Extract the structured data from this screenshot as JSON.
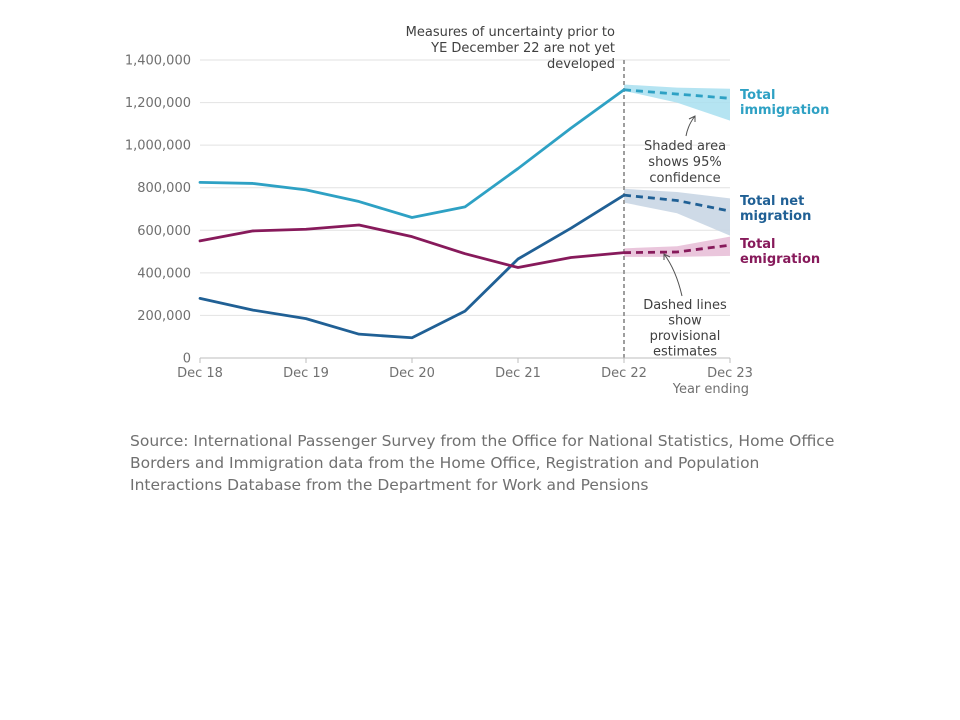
{
  "chart_data": {
    "type": "line",
    "x_ticks": [
      "Dec 18",
      "Dec 19",
      "Dec 20",
      "Dec 21",
      "Dec 22",
      "Dec 23"
    ],
    "x": [
      "Dec 18",
      "Jun 19",
      "Dec 19",
      "Jun 20",
      "Dec 20",
      "Jun 21",
      "Dec 21",
      "Jun 22",
      "Dec 22",
      "Jun 23",
      "Dec 23"
    ],
    "xlabel": "Year ending",
    "ylim": [
      0,
      1400000
    ],
    "y_ticks": [
      "0",
      "200,000",
      "400,000",
      "600,000",
      "800,000",
      "1,000,000",
      "1,200,000",
      "1,400,000"
    ],
    "y_tick_values": [
      0,
      200000,
      400000,
      600000,
      800000,
      1000000,
      1200000,
      1400000
    ],
    "grid": true,
    "series": [
      {
        "name": "Total immigration",
        "color": "#2ea1c4",
        "band_color": "#a8dff0",
        "values": [
          825000,
          820000,
          790000,
          735000,
          660000,
          710000,
          890000,
          1080000,
          1260000,
          1240000,
          1220000
        ],
        "ci_lower": [
          null,
          null,
          null,
          null,
          null,
          null,
          null,
          null,
          1255000,
          1200000,
          1115000
        ],
        "ci_upper": [
          null,
          null,
          null,
          null,
          null,
          null,
          null,
          null,
          1285000,
          1270000,
          1265000
        ],
        "provisional_from_index": 8
      },
      {
        "name": "Total net migration",
        "color": "#206095",
        "band_color": "#c5d3e3",
        "values": [
          280000,
          225000,
          185000,
          112000,
          95000,
          220000,
          465000,
          610000,
          765000,
          740000,
          690000
        ],
        "ci_lower": [
          null,
          null,
          null,
          null,
          null,
          null,
          null,
          null,
          730000,
          680000,
          575000
        ],
        "ci_upper": [
          null,
          null,
          null,
          null,
          null,
          null,
          null,
          null,
          795000,
          780000,
          750000
        ],
        "provisional_from_index": 8
      },
      {
        "name": "Total emigration",
        "color": "#871a5b",
        "band_color": "#e6bcd6",
        "values": [
          550000,
          597000,
          605000,
          625000,
          570000,
          490000,
          425000,
          472000,
          495000,
          498000,
          530000
        ],
        "ci_lower": [
          null,
          null,
          null,
          null,
          null,
          null,
          null,
          null,
          475000,
          475000,
          480000
        ],
        "ci_upper": [
          null,
          null,
          null,
          null,
          null,
          null,
          null,
          null,
          515000,
          525000,
          570000
        ],
        "provisional_from_index": 8
      }
    ],
    "annotations": {
      "uncertainty_note": [
        "Measures of uncertainty prior to",
        "YE December 22 are not yet",
        "developed"
      ],
      "shaded_note": [
        "Shaded area",
        "shows 95%",
        "confidence"
      ],
      "dashed_note": [
        "Dashed lines",
        "show",
        "provisional",
        "estimates"
      ]
    },
    "series_labels": {
      "immigration": [
        "Total",
        "immigration"
      ],
      "net": [
        "Total net",
        "migration"
      ],
      "emigration": [
        "Total",
        "emigration"
      ]
    }
  },
  "source_text": "Source: International Passenger Survey from the Office for National Statistics, Home Office Borders and Immigration data from the Home Office, Registration and Population Interactions Database from the Department for Work and Pensions"
}
